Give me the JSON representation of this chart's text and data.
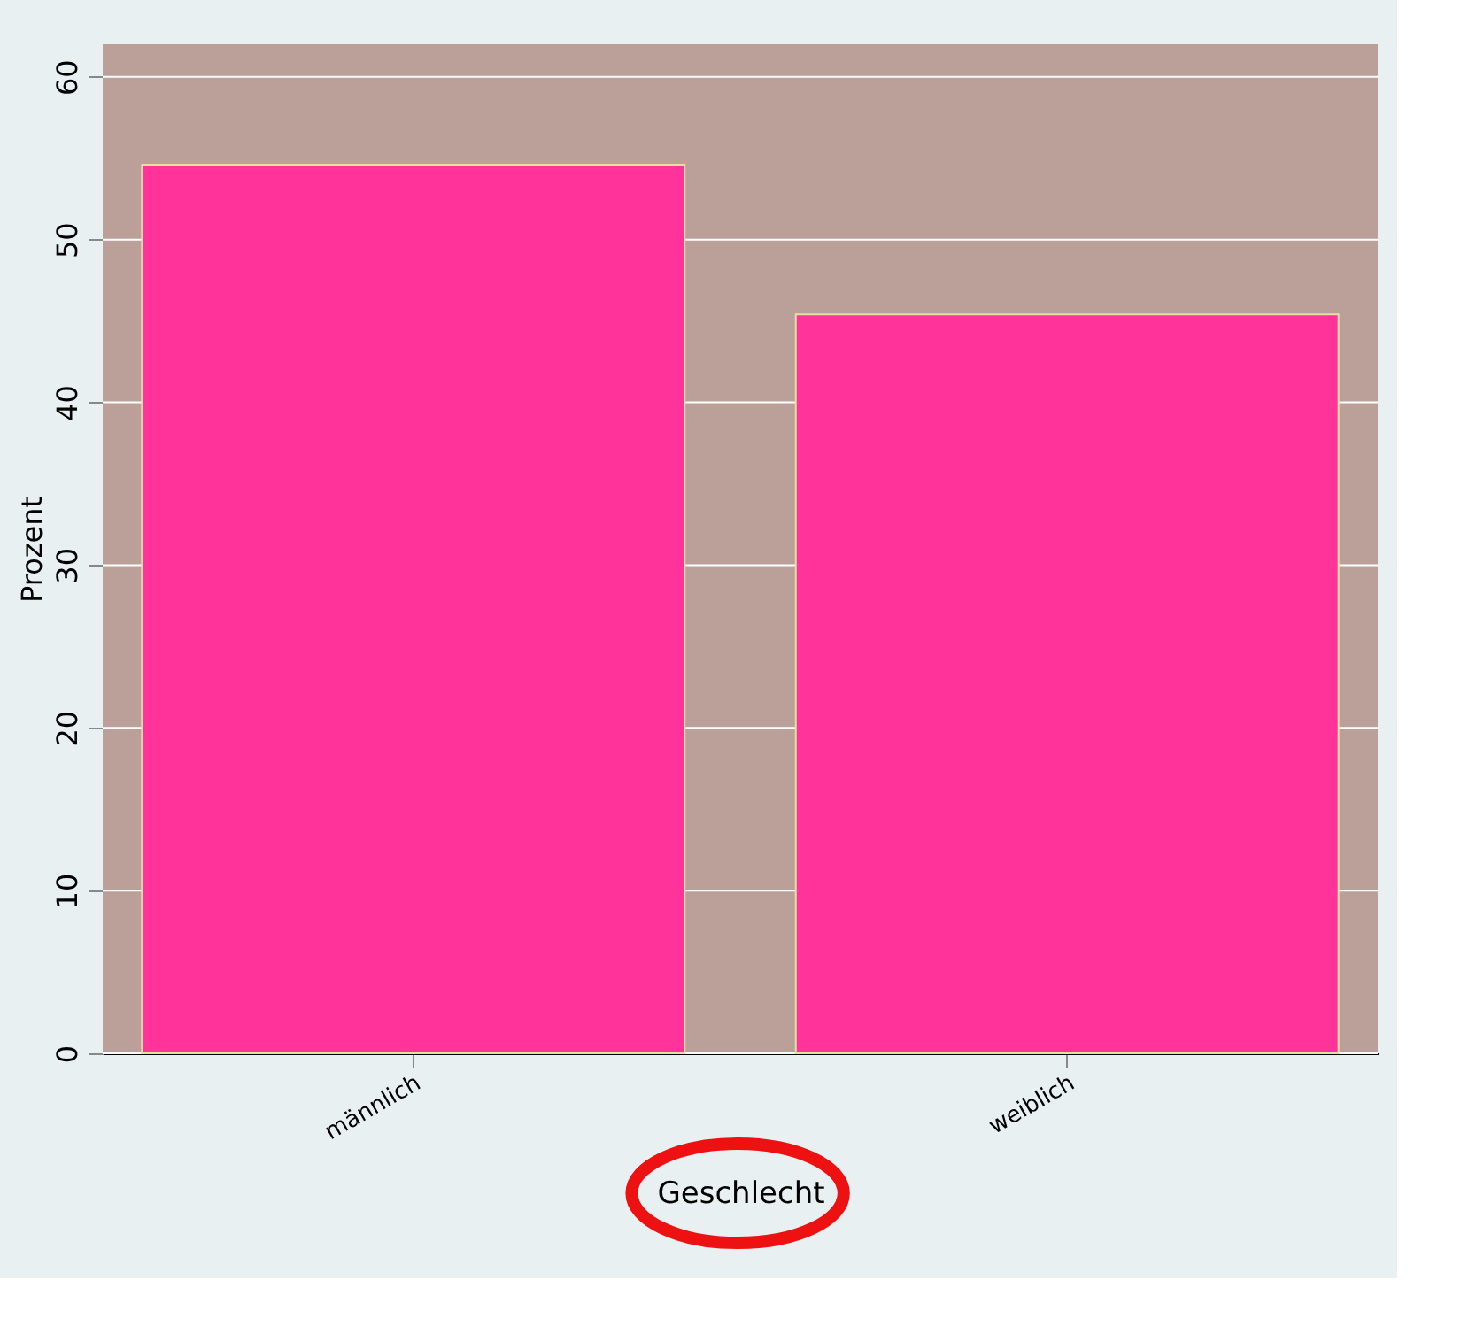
{
  "chart_data": {
    "type": "bar",
    "xlabel": "Geschlecht",
    "ylabel": "Prozent",
    "categories": [
      "männlich",
      "weiblich"
    ],
    "values": [
      54.6,
      45.4
    ],
    "color": "#ff3399",
    "ylim": [
      0,
      62
    ],
    "yticks": [
      0,
      10,
      20,
      30,
      40,
      50,
      60
    ],
    "grid": "y",
    "bands": [
      {
        "axis": "y",
        "from": 0,
        "to": 62,
        "color": "#bba09a"
      }
    ]
  }
}
